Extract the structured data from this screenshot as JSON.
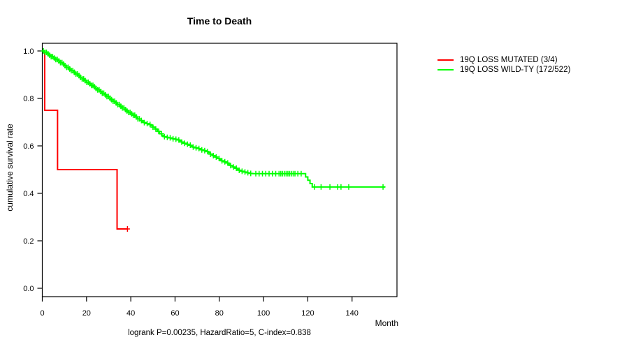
{
  "figure": {
    "title": "Time to Death",
    "caption": "logrank P=0.00235, HazardRatio=5, C-index=0.838"
  },
  "chart_data": {
    "type": "line",
    "subtype": "kaplan-meier-step-curves",
    "title": "Time to Death",
    "xlabel": "Month",
    "ylabel": "cumulative survival rate",
    "caption": "logrank P=0.00235, HazardRatio=5, C-index=0.838",
    "xlim": [
      0,
      160
    ],
    "ylim": [
      0.0,
      1.04
    ],
    "x_ticks": [
      0,
      20,
      40,
      60,
      80,
      100,
      120,
      140
    ],
    "y_ticks": [
      "0.0",
      "0.2",
      "0.4",
      "0.6",
      "0.8",
      "1.0"
    ],
    "grid": false,
    "legend_position": "right-outside",
    "axis_color": "#000000",
    "series": [
      {
        "name": "19Q LOSS MUTATED",
        "legend_label": "19Q LOSS MUTATED (3/4)",
        "events": "3/4",
        "color": "#ff0000",
        "steps": [
          [
            0,
            1.0
          ],
          [
            1.1,
            0.75
          ],
          [
            6.9,
            0.5
          ],
          [
            33.8,
            0.25
          ],
          [
            38.5,
            0.25
          ]
        ],
        "censor_months": [
          38.5
        ]
      },
      {
        "name": "19Q LOSS WILD-TY",
        "legend_label": "19Q LOSS WILD-TY (172/522)",
        "events": "172/522",
        "color": "#00ff00",
        "steps": [
          [
            0,
            1.0
          ],
          [
            1,
            0.994
          ],
          [
            2,
            0.988
          ],
          [
            3,
            0.982
          ],
          [
            4,
            0.976
          ],
          [
            5,
            0.97
          ],
          [
            6,
            0.964
          ],
          [
            7,
            0.958
          ],
          [
            8,
            0.951
          ],
          [
            9,
            0.945
          ],
          [
            10,
            0.938
          ],
          [
            11,
            0.931
          ],
          [
            12,
            0.924
          ],
          [
            13,
            0.917
          ],
          [
            14,
            0.91
          ],
          [
            15,
            0.903
          ],
          [
            16,
            0.896
          ],
          [
            17,
            0.889
          ],
          [
            18,
            0.882
          ],
          [
            19,
            0.875
          ],
          [
            20,
            0.868
          ],
          [
            21,
            0.862
          ],
          [
            22,
            0.855
          ],
          [
            23,
            0.849
          ],
          [
            24,
            0.842
          ],
          [
            25,
            0.836
          ],
          [
            26,
            0.829
          ],
          [
            27,
            0.822
          ],
          [
            28,
            0.815
          ],
          [
            29,
            0.808
          ],
          [
            30,
            0.801
          ],
          [
            31,
            0.795
          ],
          [
            32,
            0.788
          ],
          [
            33,
            0.781
          ],
          [
            34,
            0.774
          ],
          [
            35,
            0.767
          ],
          [
            36,
            0.76
          ],
          [
            37,
            0.753
          ],
          [
            38,
            0.747
          ],
          [
            39,
            0.741
          ],
          [
            40,
            0.735
          ],
          [
            41,
            0.729
          ],
          [
            42,
            0.722
          ],
          [
            43,
            0.714
          ],
          [
            44,
            0.707
          ],
          [
            45,
            0.702
          ],
          [
            46,
            0.698
          ],
          [
            47,
            0.694
          ],
          [
            48,
            0.69
          ],
          [
            49,
            0.685
          ],
          [
            50,
            0.679
          ],
          [
            51,
            0.671
          ],
          [
            52,
            0.661
          ],
          [
            53,
            0.651
          ],
          [
            54,
            0.644
          ],
          [
            55,
            0.639
          ],
          [
            56,
            0.636
          ],
          [
            57,
            0.634
          ],
          [
            58,
            0.632
          ],
          [
            59,
            0.63
          ],
          [
            60,
            0.628
          ],
          [
            61,
            0.625
          ],
          [
            62,
            0.621
          ],
          [
            63,
            0.616
          ],
          [
            64,
            0.611
          ],
          [
            65,
            0.607
          ],
          [
            66,
            0.603
          ],
          [
            67,
            0.599
          ],
          [
            68,
            0.595
          ],
          [
            69,
            0.592
          ],
          [
            70,
            0.589
          ],
          [
            71,
            0.586
          ],
          [
            72,
            0.583
          ],
          [
            73,
            0.58
          ],
          [
            74,
            0.576
          ],
          [
            75,
            0.571
          ],
          [
            76,
            0.565
          ],
          [
            77,
            0.559
          ],
          [
            78,
            0.553
          ],
          [
            79,
            0.547
          ],
          [
            80,
            0.542
          ],
          [
            81,
            0.537
          ],
          [
            82,
            0.533
          ],
          [
            83,
            0.528
          ],
          [
            84,
            0.523
          ],
          [
            85,
            0.517
          ],
          [
            86,
            0.511
          ],
          [
            87,
            0.506
          ],
          [
            88,
            0.501
          ],
          [
            89,
            0.497
          ],
          [
            90,
            0.493
          ],
          [
            91,
            0.49
          ],
          [
            92,
            0.487
          ],
          [
            93,
            0.485
          ],
          [
            94,
            0.484
          ],
          [
            95,
            0.483
          ],
          [
            118,
            0.483
          ],
          [
            119,
            0.469
          ],
          [
            120,
            0.455
          ],
          [
            121,
            0.441
          ],
          [
            122,
            0.427
          ],
          [
            155,
            0.427
          ]
        ],
        "censor_months": [
          0.5,
          1.2,
          1.9,
          2.6,
          3.3,
          4.0,
          4.7,
          5.4,
          6.1,
          6.8,
          7.5,
          8.2,
          8.9,
          9.6,
          10.3,
          11.0,
          11.7,
          12.4,
          13.1,
          13.8,
          14.5,
          15.2,
          15.9,
          16.6,
          17.3,
          18.0,
          18.7,
          19.4,
          20.1,
          20.8,
          21.5,
          22.2,
          22.9,
          23.6,
          24.3,
          25.0,
          25.7,
          26.4,
          27.1,
          27.8,
          28.5,
          29.2,
          29.9,
          30.6,
          31.3,
          32.0,
          32.7,
          33.4,
          34.1,
          34.8,
          35.5,
          36.2,
          36.9,
          37.6,
          38.3,
          39.0,
          39.7,
          40.4,
          41.1,
          41.8,
          42.5,
          43.2,
          43.9,
          44.8,
          46.1,
          47.4,
          48.7,
          50.0,
          51.3,
          52.6,
          53.9,
          55.2,
          56.5,
          57.8,
          59.1,
          60.4,
          61.7,
          63.0,
          64.3,
          65.6,
          66.9,
          68.2,
          69.5,
          70.8,
          72.1,
          73.4,
          74.7,
          76.0,
          77.3,
          78.6,
          79.9,
          81.2,
          82.5,
          83.8,
          85.1,
          86.4,
          87.7,
          89.0,
          90.3,
          91.6,
          92.9,
          94.2,
          96.5,
          98.0,
          99.5,
          101.0,
          102.5,
          104.0,
          105.5,
          107.0,
          107.8,
          108.6,
          109.4,
          110.2,
          111.0,
          111.8,
          112.6,
          113.4,
          114.2,
          115.5,
          117.0,
          123.0,
          126.0,
          130.0,
          133.5,
          135.0,
          138.5,
          154.0
        ]
      }
    ]
  }
}
